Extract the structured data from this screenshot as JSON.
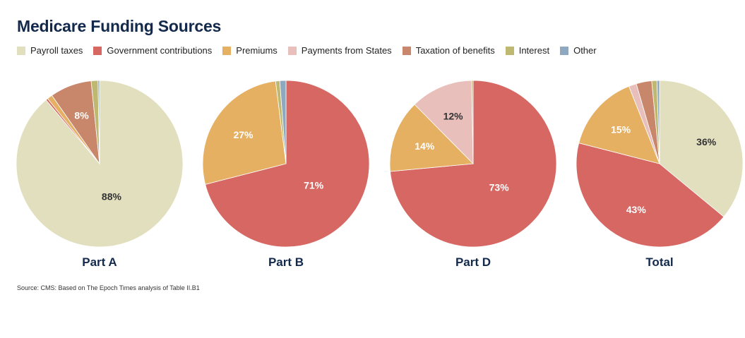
{
  "title": "Medicare Funding Sources",
  "source": "Source: CMS: Based on The Epoch Times analysis of Table II.B1",
  "legend": [
    {
      "label": "Payroll taxes",
      "color": "#e2dfbf"
    },
    {
      "label": "Government contributions",
      "color": "#d76762"
    },
    {
      "label": "Premiums",
      "color": "#e6b062"
    },
    {
      "label": "Payments from States",
      "color": "#e8bfbb"
    },
    {
      "label": "Taxation of benefits",
      "color": "#c8866a"
    },
    {
      "label": "Interest",
      "color": "#bfb870"
    },
    {
      "label": "Other",
      "color": "#8ea9bf"
    }
  ],
  "chart_data": [
    {
      "type": "pie",
      "title": "Part A",
      "slices": [
        {
          "name": "Payroll taxes",
          "value": 88,
          "label": "88%",
          "color": "#e2dfbf",
          "label_color": "#333333"
        },
        {
          "name": "Government contributions",
          "value": 0.4,
          "label": "",
          "color": "#d76762"
        },
        {
          "name": "Premiums",
          "value": 1,
          "label": "",
          "color": "#e6b062"
        },
        {
          "name": "Taxation of benefits",
          "value": 8,
          "label": "8%",
          "color": "#c8866a",
          "label_color": "#ffffff"
        },
        {
          "name": "Interest",
          "value": 1.3,
          "label": "",
          "color": "#bfb870"
        },
        {
          "name": "Other",
          "value": 0.3,
          "label": "",
          "color": "#8ea9bf"
        }
      ]
    },
    {
      "type": "pie",
      "title": "Part B",
      "slices": [
        {
          "name": "Government contributions",
          "value": 71,
          "label": "71%",
          "color": "#d76762",
          "label_color": "#ffffff"
        },
        {
          "name": "Premiums",
          "value": 27,
          "label": "27%",
          "color": "#e6b062",
          "label_color": "#ffffff"
        },
        {
          "name": "Interest",
          "value": 0.8,
          "label": "",
          "color": "#bfb870"
        },
        {
          "name": "Other",
          "value": 1.2,
          "label": "",
          "color": "#8ea9bf"
        }
      ]
    },
    {
      "type": "pie",
      "title": "Part D",
      "slices": [
        {
          "name": "Government contributions",
          "value": 73,
          "label": "73%",
          "color": "#d76762",
          "label_color": "#ffffff"
        },
        {
          "name": "Premiums",
          "value": 14,
          "label": "14%",
          "color": "#e6b062",
          "label_color": "#ffffff"
        },
        {
          "name": "Payments from States",
          "value": 12,
          "label": "12%",
          "color": "#e8bfbb",
          "label_color": "#333333"
        },
        {
          "name": "Interest",
          "value": 0.3,
          "label": "",
          "color": "#bfb870"
        }
      ]
    },
    {
      "type": "pie",
      "title": "Total",
      "slices": [
        {
          "name": "Payroll taxes",
          "value": 36,
          "label": "36%",
          "color": "#e2dfbf",
          "label_color": "#333333"
        },
        {
          "name": "Government contributions",
          "value": 43,
          "label": "43%",
          "color": "#d76762",
          "label_color": "#ffffff"
        },
        {
          "name": "Premiums",
          "value": 15,
          "label": "15%",
          "color": "#e6b062",
          "label_color": "#ffffff"
        },
        {
          "name": "Payments from States",
          "value": 1.5,
          "label": "",
          "color": "#e8bfbb"
        },
        {
          "name": "Taxation of benefits",
          "value": 3,
          "label": "",
          "color": "#c8866a"
        },
        {
          "name": "Interest",
          "value": 1,
          "label": "",
          "color": "#bfb870"
        },
        {
          "name": "Other",
          "value": 0.5,
          "label": "",
          "color": "#8ea9bf"
        }
      ]
    }
  ]
}
